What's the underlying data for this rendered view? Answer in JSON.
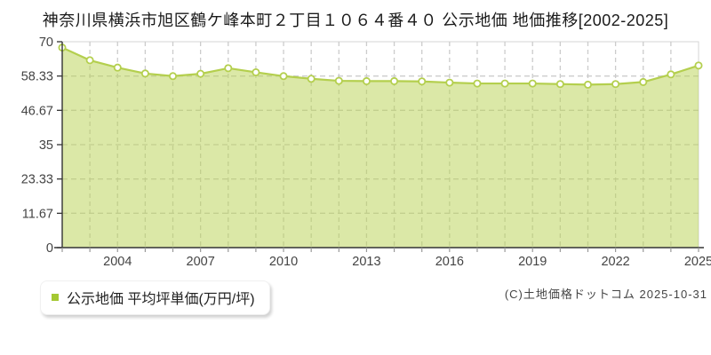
{
  "title": "神奈川県横浜市旭区鶴ケ峰本町２丁目１０６４番４０ 公示地価 地価推移[2002-2025]",
  "legend": {
    "label": "公示地価 平均坪単価(万円/坪)",
    "marker_color": "#a4c832"
  },
  "copyright": "(C)土地価格ドットコム 2025-10-31",
  "colors": {
    "line": "#b4cf4e",
    "fill": "rgba(184, 210, 80, 0.5)",
    "grid": "#cccccc",
    "plot_border": "#d4d4d4",
    "axis": "#333333",
    "tick": "#999999",
    "tick_label": "#444444",
    "marker_fill": "#ffffff"
  },
  "chart_data": {
    "type": "area",
    "title": "神奈川県横浜市旭区鶴ケ峰本町２丁目１０６４番４０ 公示地価 地価推移[2002-2025]",
    "x": [
      2002,
      2003,
      2004,
      2005,
      2006,
      2007,
      2008,
      2009,
      2010,
      2011,
      2012,
      2013,
      2014,
      2015,
      2016,
      2017,
      2018,
      2019,
      2020,
      2021,
      2022,
      2023,
      2024,
      2025
    ],
    "series": [
      {
        "name": "公示地価 平均坪単価(万円/坪)",
        "values": [
          68.0,
          63.7,
          61.2,
          59.2,
          58.3,
          59.1,
          61.0,
          59.6,
          58.3,
          57.4,
          56.7,
          56.6,
          56.6,
          56.5,
          56.1,
          55.8,
          55.8,
          55.8,
          55.6,
          55.4,
          55.6,
          56.3,
          58.9,
          61.9
        ]
      }
    ],
    "xlabel": "",
    "ylabel": "平均坪単価(万円/坪)",
    "ylim": [
      0,
      70
    ],
    "yticks": [
      0,
      11.67,
      23.33,
      35,
      46.67,
      58.33,
      70
    ],
    "ytick_labels": [
      "0",
      "11.67",
      "23.33",
      "35",
      "46.67",
      "58.33",
      "70"
    ],
    "xtick_labeled_years": [
      "2004",
      "2007",
      "2010",
      "2013",
      "2016",
      "2019",
      "2022",
      "2025"
    ],
    "grid": true,
    "legend_position": "bottom-left"
  }
}
